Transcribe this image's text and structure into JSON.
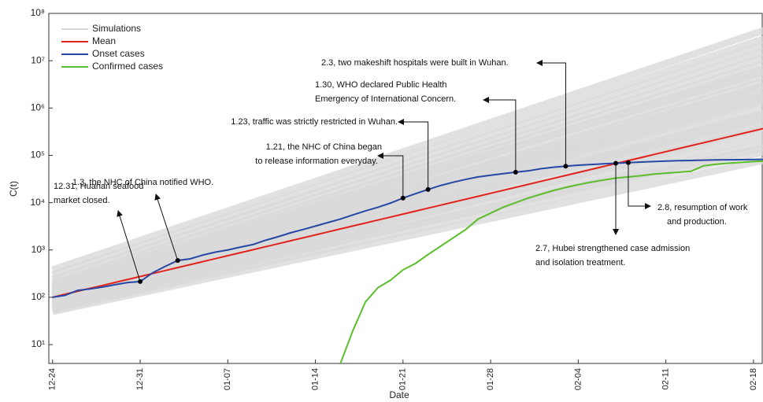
{
  "chart_data": {
    "type": "line",
    "log_y": true,
    "xlabel": "Date",
    "ylabel": "C(t)",
    "x": [
      0,
      1,
      2,
      3,
      4,
      5,
      6,
      7,
      8,
      9,
      10,
      11,
      12,
      13,
      14,
      15,
      16,
      17,
      18,
      19,
      20,
      21,
      22,
      23,
      24,
      25,
      26,
      27,
      28,
      29,
      30,
      31,
      32,
      33,
      34,
      35,
      36,
      37,
      38,
      39,
      40,
      41,
      42,
      43,
      44,
      45,
      46,
      47,
      48,
      49,
      50,
      51,
      52,
      53,
      54,
      55,
      56,
      57
    ],
    "xlim": [
      -0.3,
      56.7
    ],
    "xticks": [
      {
        "value": 0,
        "label": "12-24"
      },
      {
        "value": 7,
        "label": "12-31"
      },
      {
        "value": 14,
        "label": "01-07"
      },
      {
        "value": 21,
        "label": "01-14"
      },
      {
        "value": 28,
        "label": "01-21"
      },
      {
        "value": 35,
        "label": "01-28"
      },
      {
        "value": 42,
        "label": "02-04"
      },
      {
        "value": 49,
        "label": "02-11"
      },
      {
        "value": 56,
        "label": "02-18"
      }
    ],
    "ylim": [
      4,
      100000000
    ],
    "yticks": [
      {
        "value": 10,
        "label": "10¹"
      },
      {
        "value": 100,
        "label": "10²"
      },
      {
        "value": 1000,
        "label": "10³"
      },
      {
        "value": 10000,
        "label": "10⁴"
      },
      {
        "value": 100000,
        "label": "10⁵"
      },
      {
        "value": 1000000,
        "label": "10⁶"
      },
      {
        "value": 10000000,
        "label": "10⁷"
      },
      {
        "value": 100000000,
        "label": "10⁸"
      }
    ],
    "simulations": {
      "name": "Simulations",
      "color": "#d9d9d9",
      "x": [
        0,
        57
      ],
      "lines": [
        [
          50,
          80000
        ],
        [
          55,
          120000
        ],
        [
          60,
          180000
        ],
        [
          65,
          250000
        ],
        [
          70,
          350000
        ],
        [
          75,
          500000
        ],
        [
          80,
          700000
        ],
        [
          85,
          1000000
        ],
        [
          90,
          1400000
        ],
        [
          95,
          2000000
        ],
        [
          100,
          2800000
        ],
        [
          110,
          3800000
        ],
        [
          120,
          5000000
        ],
        [
          130,
          7000000
        ],
        [
          150,
          9000000
        ],
        [
          170,
          12000000
        ],
        [
          200,
          16000000
        ],
        [
          240,
          22000000
        ],
        [
          300,
          30000000
        ],
        [
          380,
          45000000
        ],
        [
          60,
          400000
        ],
        [
          90,
          800000
        ],
        [
          110,
          1500000
        ],
        [
          140,
          3000000
        ],
        [
          180,
          6000000
        ],
        [
          70,
          150000
        ],
        [
          100,
          600000
        ],
        [
          130,
          2000000
        ]
      ]
    },
    "series": [
      {
        "name": "Mean",
        "color": "#e3221c",
        "values": [
          100,
          116,
          134,
          155,
          178,
          206,
          238,
          275,
          318,
          367,
          425,
          491,
          567,
          655,
          757,
          875,
          1011,
          1168,
          1350,
          1560,
          1803,
          2083,
          2407,
          2782,
          3215,
          3715,
          4293,
          4961,
          5733,
          6625,
          7656,
          8847,
          10224,
          11815,
          13653,
          15778,
          18233,
          21070,
          24349,
          28138,
          32516,
          37576,
          43423,
          50180,
          57988,
          67011,
          77438,
          89487,
          103410,
          119500,
          138093,
          159579,
          184408,
          213100,
          246256,
          284571,
          328848,
          380014
        ]
      },
      {
        "name": "Onset cases",
        "color": "#2747a6",
        "values": [
          100,
          110,
          140,
          150,
          165,
          185,
          205,
          215,
          330,
          450,
          600,
          650,
          780,
          900,
          1000,
          1150,
          1300,
          1600,
          1900,
          2300,
          2700,
          3200,
          3800,
          4500,
          5500,
          6700,
          8000,
          9800,
          12500,
          15500,
          19000,
          23000,
          27000,
          31000,
          35000,
          38000,
          41000,
          44000,
          47000,
          52000,
          56000,
          59000,
          62000,
          64000,
          66000,
          68000,
          70000,
          72000,
          74000,
          75500,
          77000,
          78000,
          79000,
          80000,
          80500,
          81000,
          81500,
          82000
        ]
      },
      {
        "name": "Confirmed cases",
        "color": "#5bbd2b",
        "values": [
          null,
          null,
          null,
          null,
          null,
          null,
          null,
          null,
          null,
          null,
          null,
          null,
          null,
          null,
          null,
          null,
          null,
          null,
          null,
          null,
          null,
          null,
          null,
          4,
          20,
          80,
          160,
          230,
          380,
          520,
          800,
          1200,
          1800,
          2700,
          4500,
          6000,
          8000,
          10000,
          12500,
          15000,
          18000,
          21000,
          24000,
          27000,
          30000,
          33000,
          35000,
          37000,
          40000,
          42000,
          44000,
          46000,
          60000,
          65000,
          68000,
          71000,
          74000,
          76000
        ]
      }
    ],
    "annotations": [
      {
        "x": 7,
        "lines": [
          "12.31, Huanan seafood",
          "market closed."
        ]
      },
      {
        "x": 10,
        "lines": [
          "1.3, the NHC of China notified WHO."
        ]
      },
      {
        "x": 28,
        "lines": [
          "1.21, the NHC of China began",
          "to release information everyday."
        ]
      },
      {
        "x": 30,
        "lines": [
          "1.23, traffic was strictly restricted in Wuhan."
        ]
      },
      {
        "x": 37,
        "lines": [
          "1.30, WHO declared Public Health",
          "Emergency of International Concern."
        ]
      },
      {
        "x": 41,
        "lines": [
          "2.3, two makeshift hospitals were built in Wuhan."
        ]
      },
      {
        "x": 45,
        "lines": [
          "2.7, Hubei strengthened case admission",
          "and isolation treatment."
        ]
      },
      {
        "x": 46,
        "lines": [
          "2.8, resumption of work",
          "and production."
        ]
      }
    ]
  }
}
